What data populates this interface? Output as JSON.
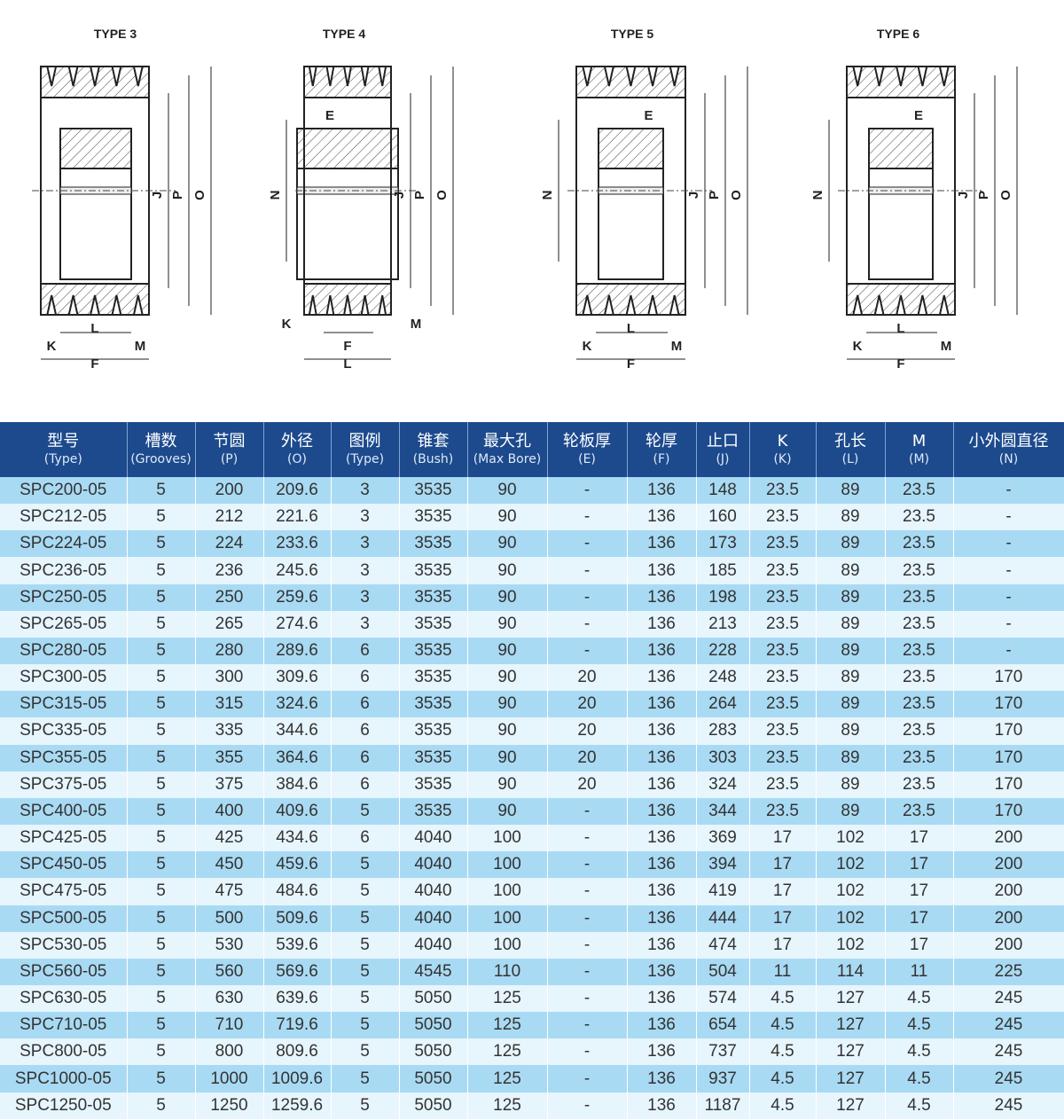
{
  "diagrams": [
    {
      "title": "TYPE 3",
      "type": 3,
      "labels": [
        "J",
        "P",
        "O",
        "K",
        "L",
        "M",
        "F"
      ]
    },
    {
      "title": "TYPE 4",
      "type": 4,
      "labels": [
        "E",
        "N",
        "J",
        "P",
        "O",
        "K",
        "F",
        "M",
        "L"
      ]
    },
    {
      "title": "TYPE 5",
      "type": 5,
      "labels": [
        "E",
        "N",
        "J",
        "P",
        "O",
        "K",
        "L",
        "M",
        "F"
      ]
    },
    {
      "title": "TYPE 6",
      "type": 6,
      "labels": [
        "E",
        "N",
        "J",
        "P",
        "O",
        "K",
        "L",
        "M",
        "F"
      ]
    }
  ],
  "colors": {
    "header": "#1c4a8d",
    "row_odd": "#a9daf3",
    "row_even": "#e7f5fd"
  },
  "table": {
    "headers": [
      {
        "cn": "型号",
        "en": "(Type)"
      },
      {
        "cn": "槽数",
        "en": "(Grooves)"
      },
      {
        "cn": "节圆",
        "en": "(P)"
      },
      {
        "cn": "外径",
        "en": "(O)"
      },
      {
        "cn": "图例",
        "en": "(Type)"
      },
      {
        "cn": "锥套",
        "en": "(Bush)"
      },
      {
        "cn": "最大孔",
        "en": "(Max Bore)"
      },
      {
        "cn": "轮板厚",
        "en": "(E)"
      },
      {
        "cn": "轮厚",
        "en": "(F)"
      },
      {
        "cn": "止口",
        "en": "(J)"
      },
      {
        "cn": "K",
        "en": "(K)"
      },
      {
        "cn": "孔长",
        "en": "(L)"
      },
      {
        "cn": "M",
        "en": "(M)"
      },
      {
        "cn": "小外圆直径",
        "en": "(N)"
      }
    ],
    "rows": [
      [
        "SPC200-05",
        "5",
        "200",
        "209.6",
        "3",
        "3535",
        "90",
        "-",
        "136",
        "148",
        "23.5",
        "89",
        "23.5",
        "-"
      ],
      [
        "SPC212-05",
        "5",
        "212",
        "221.6",
        "3",
        "3535",
        "90",
        "-",
        "136",
        "160",
        "23.5",
        "89",
        "23.5",
        "-"
      ],
      [
        "SPC224-05",
        "5",
        "224",
        "233.6",
        "3",
        "3535",
        "90",
        "-",
        "136",
        "173",
        "23.5",
        "89",
        "23.5",
        "-"
      ],
      [
        "SPC236-05",
        "5",
        "236",
        "245.6",
        "3",
        "3535",
        "90",
        "-",
        "136",
        "185",
        "23.5",
        "89",
        "23.5",
        "-"
      ],
      [
        "SPC250-05",
        "5",
        "250",
        "259.6",
        "3",
        "3535",
        "90",
        "-",
        "136",
        "198",
        "23.5",
        "89",
        "23.5",
        "-"
      ],
      [
        "SPC265-05",
        "5",
        "265",
        "274.6",
        "3",
        "3535",
        "90",
        "-",
        "136",
        "213",
        "23.5",
        "89",
        "23.5",
        "-"
      ],
      [
        "SPC280-05",
        "5",
        "280",
        "289.6",
        "6",
        "3535",
        "90",
        "-",
        "136",
        "228",
        "23.5",
        "89",
        "23.5",
        "-"
      ],
      [
        "SPC300-05",
        "5",
        "300",
        "309.6",
        "6",
        "3535",
        "90",
        "20",
        "136",
        "248",
        "23.5",
        "89",
        "23.5",
        "170"
      ],
      [
        "SPC315-05",
        "5",
        "315",
        "324.6",
        "6",
        "3535",
        "90",
        "20",
        "136",
        "264",
        "23.5",
        "89",
        "23.5",
        "170"
      ],
      [
        "SPC335-05",
        "5",
        "335",
        "344.6",
        "6",
        "3535",
        "90",
        "20",
        "136",
        "283",
        "23.5",
        "89",
        "23.5",
        "170"
      ],
      [
        "SPC355-05",
        "5",
        "355",
        "364.6",
        "6",
        "3535",
        "90",
        "20",
        "136",
        "303",
        "23.5",
        "89",
        "23.5",
        "170"
      ],
      [
        "SPC375-05",
        "5",
        "375",
        "384.6",
        "6",
        "3535",
        "90",
        "20",
        "136",
        "324",
        "23.5",
        "89",
        "23.5",
        "170"
      ],
      [
        "SPC400-05",
        "5",
        "400",
        "409.6",
        "5",
        "3535",
        "90",
        "-",
        "136",
        "344",
        "23.5",
        "89",
        "23.5",
        "170"
      ],
      [
        "SPC425-05",
        "5",
        "425",
        "434.6",
        "6",
        "4040",
        "100",
        "-",
        "136",
        "369",
        "17",
        "102",
        "17",
        "200"
      ],
      [
        "SPC450-05",
        "5",
        "450",
        "459.6",
        "5",
        "4040",
        "100",
        "-",
        "136",
        "394",
        "17",
        "102",
        "17",
        "200"
      ],
      [
        "SPC475-05",
        "5",
        "475",
        "484.6",
        "5",
        "4040",
        "100",
        "-",
        "136",
        "419",
        "17",
        "102",
        "17",
        "200"
      ],
      [
        "SPC500-05",
        "5",
        "500",
        "509.6",
        "5",
        "4040",
        "100",
        "-",
        "136",
        "444",
        "17",
        "102",
        "17",
        "200"
      ],
      [
        "SPC530-05",
        "5",
        "530",
        "539.6",
        "5",
        "4040",
        "100",
        "-",
        "136",
        "474",
        "17",
        "102",
        "17",
        "200"
      ],
      [
        "SPC560-05",
        "5",
        "560",
        "569.6",
        "5",
        "4545",
        "110",
        "-",
        "136",
        "504",
        "11",
        "114",
        "11",
        "225"
      ],
      [
        "SPC630-05",
        "5",
        "630",
        "639.6",
        "5",
        "5050",
        "125",
        "-",
        "136",
        "574",
        "4.5",
        "127",
        "4.5",
        "245"
      ],
      [
        "SPC710-05",
        "5",
        "710",
        "719.6",
        "5",
        "5050",
        "125",
        "-",
        "136",
        "654",
        "4.5",
        "127",
        "4.5",
        "245"
      ],
      [
        "SPC800-05",
        "5",
        "800",
        "809.6",
        "5",
        "5050",
        "125",
        "-",
        "136",
        "737",
        "4.5",
        "127",
        "4.5",
        "245"
      ],
      [
        "SPC1000-05",
        "5",
        "1000",
        "1009.6",
        "5",
        "5050",
        "125",
        "-",
        "136",
        "937",
        "4.5",
        "127",
        "4.5",
        "245"
      ],
      [
        "SPC1250-05",
        "5",
        "1250",
        "1259.6",
        "5",
        "5050",
        "125",
        "-",
        "136",
        "1187",
        "4.5",
        "127",
        "4.5",
        "245"
      ]
    ]
  }
}
